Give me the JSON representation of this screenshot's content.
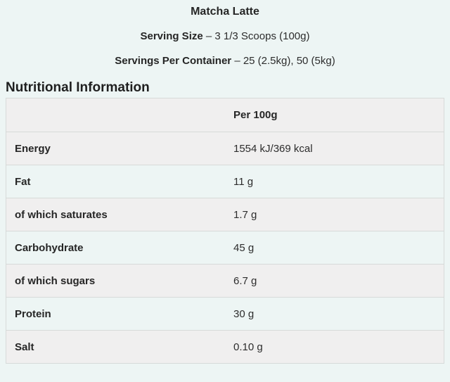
{
  "page": {
    "background_color": "#edf5f4",
    "row_stripe_color": "#f0efef",
    "border_color": "#d7dad9",
    "text_color": "#2d2d2d"
  },
  "header": {
    "product_title": "Matcha Latte",
    "serving_size_label": "Serving Size",
    "serving_size_value": "– 3 1/3 Scoops (100g)",
    "servings_per_container_label": "Servings Per Container",
    "servings_per_container_value": "– 25 (2.5kg), 50 (5kg)"
  },
  "section": {
    "title": "Nutritional Information"
  },
  "table": {
    "column_header": "Per 100g",
    "rows": [
      {
        "label": "Energy",
        "value": "1554 kJ/369 kcal"
      },
      {
        "label": "Fat",
        "value": "11 g"
      },
      {
        "label": "of which saturates",
        "value": "1.7 g"
      },
      {
        "label": "Carbohydrate",
        "value": "45 g"
      },
      {
        "label": "of which sugars",
        "value": "6.7 g"
      },
      {
        "label": "Protein",
        "value": "30 g"
      },
      {
        "label": "Salt",
        "value": "0.10 g"
      }
    ]
  }
}
